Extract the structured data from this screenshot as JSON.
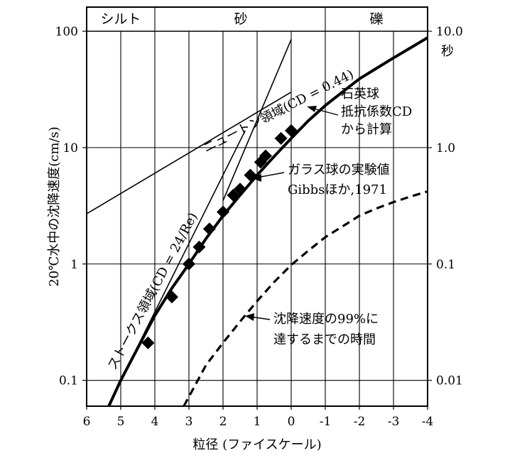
{
  "chart_data": {
    "type": "line",
    "x_axis": {
      "label": "粒径 (ファイスケール)",
      "range": [
        6,
        -4
      ],
      "ticks": [
        "6",
        "5",
        "4",
        "3",
        "2",
        "1",
        "0",
        "-1",
        "-2",
        "-3",
        "-4"
      ]
    },
    "y_axis_left": {
      "label": "20℃水中の沈降速度(cm/s)",
      "scale": "log",
      "range": [
        0.06,
        100
      ],
      "ticks": [
        "0.1",
        "1",
        "10",
        "100"
      ]
    },
    "y_axis_right": {
      "label": "秒",
      "scale": "log",
      "range": [
        0.006,
        10
      ],
      "ticks": [
        "0.01",
        "0.1",
        "1.0",
        "10.0"
      ]
    },
    "size_classes": [
      {
        "name": "シルト",
        "from": 6,
        "to": 4
      },
      {
        "name": "砂",
        "from": 4,
        "to": -1
      },
      {
        "name": "礫",
        "from": -1,
        "to": -4
      }
    ],
    "series": [
      {
        "name": "石英球抵抗係数CDから計算",
        "style": "thick-solid",
        "x": [
          5.35,
          5.0,
          4.5,
          4.0,
          3.5,
          3.0,
          2.5,
          2.0,
          1.5,
          1.0,
          0.5,
          0.0,
          -0.5,
          -1.0,
          -1.5,
          -2.0,
          -2.5,
          -3.0,
          -3.5,
          -4.0
        ],
        "y": [
          0.06,
          0.1,
          0.19,
          0.36,
          0.62,
          1.0,
          1.65,
          2.6,
          3.9,
          5.8,
          8.4,
          12.0,
          17.0,
          23.0,
          30.0,
          39.0,
          48.0,
          59.0,
          72.0,
          88.0
        ]
      },
      {
        "name": "ストークス領域(CD = 24/Re)",
        "style": "thin-solid",
        "x": [
          5.0,
          1.35
        ],
        "y": [
          0.1,
          14.0
        ]
      },
      {
        "name": "ニュートン領域(CD = 0.44)",
        "style": "thin-solid",
        "x": [
          6.0,
          0.0
        ],
        "y": [
          2.7,
          30.0
        ]
      },
      {
        "name": "",
        "style": "thin-solid",
        "x": [
          2.0,
          0.0
        ],
        "y": [
          3.5,
          85.0
        ]
      },
      {
        "name": "沈降速度の99%に達するまでの時間",
        "style": "dashed",
        "axis": "right",
        "x": [
          3.15,
          2.5,
          2.0,
          1.5,
          1.0,
          0.5,
          0.0,
          -0.5,
          -1.0,
          -1.5,
          -2.0,
          -2.5,
          -3.0,
          -3.5,
          -4.0
        ],
        "y": [
          0.006,
          0.0135,
          0.021,
          0.032,
          0.048,
          0.07,
          0.098,
          0.13,
          0.17,
          0.21,
          0.26,
          0.3,
          0.34,
          0.38,
          0.42
        ]
      },
      {
        "name": "ガラス球の実験値 Gibbsほか,1971",
        "style": "diamond-markers",
        "x": [
          4.2,
          3.5,
          3.0,
          2.7,
          2.4,
          2.0,
          1.7,
          1.5,
          1.2,
          0.9,
          0.75,
          0.3,
          0.0
        ],
        "y": [
          0.21,
          0.52,
          1.0,
          1.4,
          2.0,
          2.8,
          3.9,
          4.4,
          5.8,
          7.5,
          8.5,
          12.0,
          14.0
        ]
      }
    ],
    "annotations": [
      {
        "id": "stokes",
        "text": "ストークス領域(CD = 24/Re)"
      },
      {
        "id": "newton",
        "text": "ニュートン領域(CD = 0.44)"
      },
      {
        "id": "quartz",
        "lines": [
          "石英球",
          "抵抗係数CD",
          "から計算"
        ]
      },
      {
        "id": "glass",
        "lines": [
          "ガラス球の実験値",
          "Gibbsほか,1971"
        ]
      },
      {
        "id": "time",
        "lines": [
          "沈降速度の99%に",
          "達するまでの時間"
        ]
      }
    ]
  }
}
